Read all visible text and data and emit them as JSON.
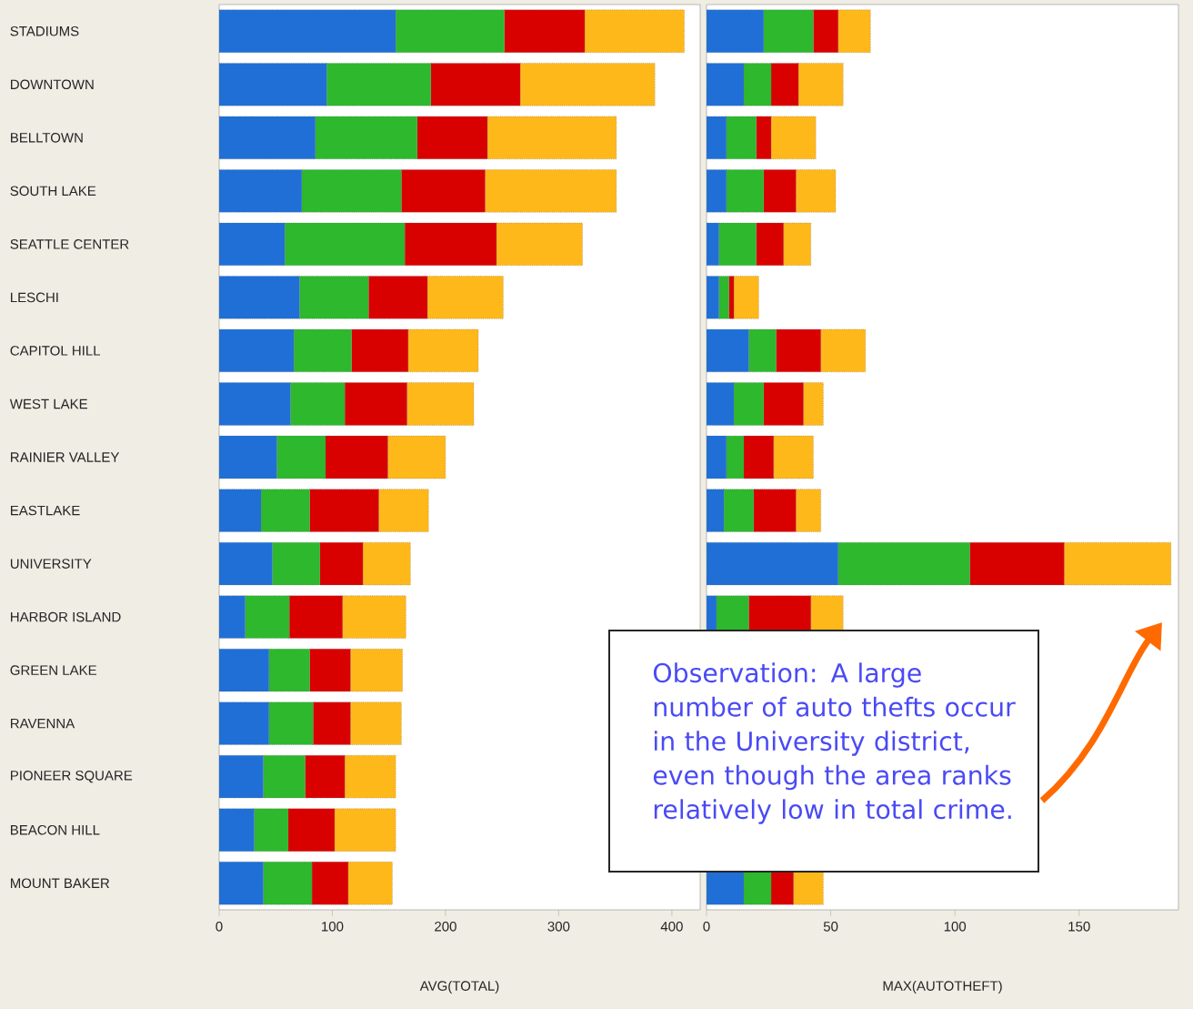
{
  "chart_data": [
    {
      "type": "bar",
      "orientation": "horizontal",
      "stacked": true,
      "xlabel": "AVG(TOTAL)",
      "categories": [
        "STADIUMS",
        "DOWNTOWN",
        "BELLTOWN",
        "SOUTH LAKE",
        "SEATTLE CENTER",
        "LESCHI",
        "CAPITOL HILL",
        "WEST LAKE",
        "RAINIER VALLEY",
        "EASTLAKE",
        "UNIVERSITY",
        "HARBOR ISLAND",
        "GREEN LAKE",
        "RAVENNA",
        "PIONEER SQUARE",
        "BEACON HILL",
        "MOUNT BAKER"
      ],
      "xlim": [
        0,
        425
      ],
      "xticks": [
        0,
        100,
        200,
        300,
        400
      ],
      "series": [
        {
          "color": "#1f6fd6",
          "values": [
            156,
            95,
            85,
            73,
            58,
            71,
            66,
            63,
            51,
            37,
            47,
            23,
            44,
            44,
            39,
            31,
            39
          ]
        },
        {
          "color": "#2db82d",
          "values": [
            96,
            92,
            90,
            88,
            106,
            61,
            51,
            48,
            43,
            43,
            42,
            39,
            36,
            39,
            37,
            30,
            43
          ]
        },
        {
          "color": "#d90000",
          "values": [
            71,
            79,
            62,
            74,
            81,
            52,
            50,
            55,
            55,
            61,
            38,
            47,
            36,
            33,
            35,
            41,
            32
          ]
        },
        {
          "color": "#ffb81a",
          "values": [
            88,
            119,
            114,
            116,
            76,
            67,
            62,
            59,
            51,
            44,
            42,
            56,
            46,
            45,
            45,
            54,
            39
          ]
        }
      ]
    },
    {
      "type": "bar",
      "orientation": "horizontal",
      "stacked": true,
      "xlabel": "MAX(AUTOTHEFT)",
      "tick_labels": "x",
      "categories": [
        null,
        null,
        null,
        null,
        null,
        null,
        null,
        null,
        null,
        null,
        null,
        null,
        null,
        null,
        null,
        null,
        null
      ],
      "xlim": [
        0,
        190
      ],
      "xticks": [
        0,
        50,
        100,
        150
      ],
      "annotations": [
        "Observation: A large number of auto thefts occur in the University district, even though the area ranks relatively low in total crime."
      ],
      "series": [
        {
          "color": "#1f6fd6",
          "values": [
            23,
            15,
            8,
            8,
            5,
            5,
            17,
            11,
            8,
            7,
            53,
            4,
            null,
            null,
            null,
            null,
            15
          ]
        },
        {
          "color": "#2db82d",
          "values": [
            20,
            11,
            12,
            15,
            15,
            4,
            11,
            12,
            7,
            12,
            53,
            13,
            null,
            null,
            null,
            null,
            11
          ]
        },
        {
          "color": "#d90000",
          "values": [
            10,
            11,
            6,
            13,
            11,
            2,
            18,
            16,
            12,
            17,
            38,
            25,
            null,
            null,
            null,
            null,
            9
          ]
        },
        {
          "color": "#ffb81a",
          "values": [
            13,
            18,
            18,
            16,
            11,
            10,
            18,
            8,
            16,
            10,
            43,
            13,
            null,
            null,
            null,
            null,
            12
          ]
        }
      ]
    }
  ]
}
